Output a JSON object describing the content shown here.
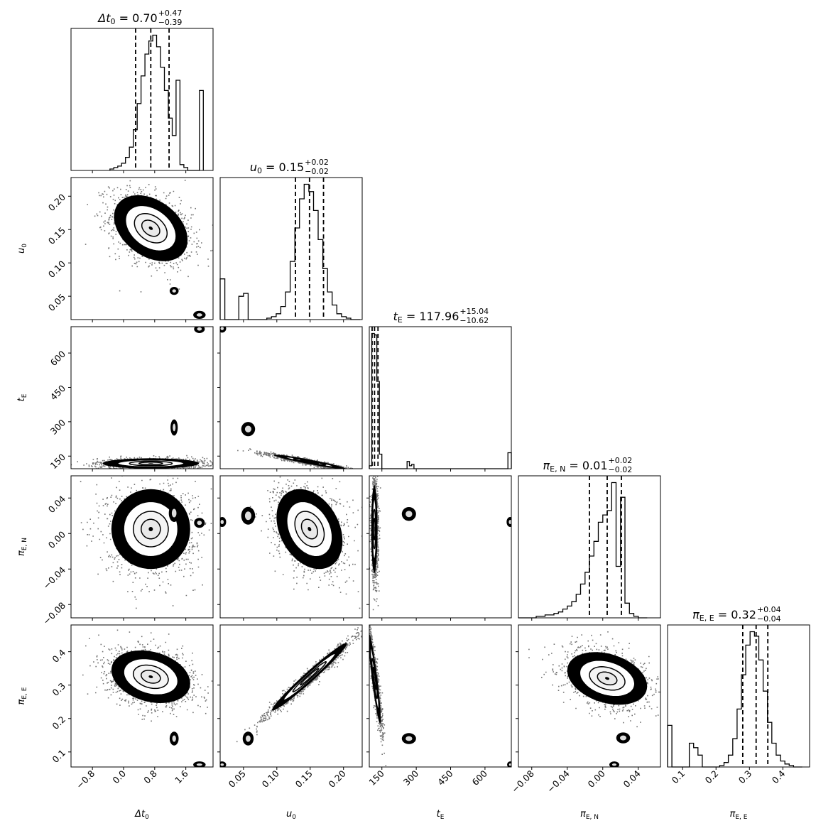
{
  "chart_data": {
    "type": "corner",
    "parameters": [
      {
        "key": "dt0",
        "label": "Δt",
        "label_sub": "0",
        "title_value": "0.70",
        "err_plus": "+0.47",
        "err_minus": "−0.39",
        "range": [
          -1.35,
          2.3
        ],
        "ticks": [
          -0.8,
          0.0,
          0.8,
          1.6
        ],
        "tick_labels": [
          "−0.8",
          "0.0",
          "0.8",
          "1.6"
        ],
        "quantiles": [
          0.31,
          0.7,
          1.17
        ]
      },
      {
        "key": "u0",
        "label": "u",
        "label_sub": "0",
        "title_value": "0.15",
        "err_plus": "+0.02",
        "err_minus": "−0.02",
        "range": [
          0.015,
          0.228
        ],
        "ticks": [
          0.05,
          0.1,
          0.15,
          0.2
        ],
        "tick_labels": [
          "0.05",
          "0.10",
          "0.15",
          "0.20"
        ],
        "quantiles": [
          0.128,
          0.149,
          0.17
        ]
      },
      {
        "key": "tE",
        "label": "t",
        "label_sub": "E",
        "title_value": "117.96",
        "err_plus": "+15.04",
        "err_minus": "−10.62",
        "range": [
          95,
          715
        ],
        "ticks": [
          150,
          300,
          450,
          600
        ],
        "tick_labels": [
          "150",
          "300",
          "450",
          "600"
        ],
        "quantiles": [
          107.3,
          117.96,
          133.0
        ]
      },
      {
        "key": "piEN",
        "label": "π",
        "label_sub": "E, N",
        "title_value": "0.01",
        "err_plus": "+0.02",
        "err_minus": "−0.02",
        "range": [
          -0.095,
          0.065
        ],
        "ticks": [
          -0.08,
          -0.04,
          0.0,
          0.04
        ],
        "tick_labels": [
          "−0.08",
          "−0.04",
          "0.00",
          "0.04"
        ],
        "quantiles": [
          -0.015,
          0.005,
          0.021
        ]
      },
      {
        "key": "piEE",
        "label": "π",
        "label_sub": "E, E",
        "title_value": "0.32",
        "err_plus": "+0.04",
        "err_minus": "−0.04",
        "range": [
          0.055,
          0.48
        ],
        "ticks": [
          0.1,
          0.2,
          0.3,
          0.4
        ],
        "tick_labels": [
          "0.1",
          "0.2",
          "0.3",
          "0.4"
        ],
        "quantiles": [
          0.28,
          0.32,
          0.355
        ]
      }
    ],
    "histograms": [
      {
        "param": "dt0",
        "bins": [
          -0.35,
          -0.25,
          -0.15,
          -0.05,
          0.05,
          0.15,
          0.25,
          0.35,
          0.45,
          0.55,
          0.65,
          0.75,
          0.85,
          0.95,
          1.05,
          1.15,
          1.25,
          1.35,
          1.45,
          1.55,
          1.65,
          1.75,
          1.85,
          1.95,
          2.05
        ],
        "values": [
          0.01,
          0.02,
          0.03,
          0.05,
          0.09,
          0.16,
          0.28,
          0.46,
          0.65,
          0.8,
          0.89,
          0.93,
          0.85,
          0.71,
          0.55,
          0.36,
          0.24,
          0.62,
          0.04,
          0.02,
          0.0,
          0.0,
          0.0,
          0.55,
          0.0
        ]
      },
      {
        "param": "u0",
        "bins": [
          0.015,
          0.022,
          0.029,
          0.036,
          0.043,
          0.05,
          0.057,
          0.064,
          0.071,
          0.078,
          0.085,
          0.092,
          0.099,
          0.106,
          0.113,
          0.12,
          0.127,
          0.134,
          0.141,
          0.148,
          0.155,
          0.162,
          0.169,
          0.176,
          0.183,
          0.19,
          0.197,
          0.204,
          0.211,
          0.218,
          0.225
        ],
        "values": [
          0.28,
          0.0,
          0.0,
          0.0,
          0.16,
          0.18,
          0.0,
          0.0,
          0.0,
          0.0,
          0.01,
          0.02,
          0.04,
          0.09,
          0.19,
          0.4,
          0.63,
          0.83,
          0.93,
          0.88,
          0.75,
          0.55,
          0.35,
          0.19,
          0.1,
          0.04,
          0.02,
          0.01,
          0.0,
          0.0
        ]
      },
      {
        "param": "tE",
        "bins": [
          95,
          106,
          117,
          128,
          139,
          150,
          200,
          250,
          260,
          270,
          280,
          290,
          300,
          600,
          700,
          715
        ],
        "values": [
          0.02,
          0.93,
          0.92,
          0.6,
          0.1,
          0.0,
          0.0,
          0.0,
          0.05,
          0.02,
          0.03,
          0.0,
          0.0,
          0.0,
          0.11
        ]
      },
      {
        "param": "piEN",
        "bins": [
          -0.095,
          -0.09,
          -0.085,
          -0.08,
          -0.075,
          -0.07,
          -0.065,
          -0.06,
          -0.055,
          -0.05,
          -0.045,
          -0.04,
          -0.035,
          -0.03,
          -0.025,
          -0.02,
          -0.015,
          -0.01,
          -0.005,
          0.0,
          0.005,
          0.01,
          0.015,
          0.02,
          0.025,
          0.03,
          0.035,
          0.04,
          0.045,
          0.05
        ],
        "values": [
          0.0,
          0.0,
          0.0,
          0.0,
          0.01,
          0.01,
          0.02,
          0.02,
          0.03,
          0.04,
          0.06,
          0.08,
          0.11,
          0.16,
          0.23,
          0.31,
          0.42,
          0.52,
          0.65,
          0.7,
          0.73,
          0.92,
          0.35,
          0.82,
          0.1,
          0.03,
          0.01,
          0.0,
          0.0
        ]
      },
      {
        "param": "piEE",
        "bins": [
          0.055,
          0.068,
          0.081,
          0.094,
          0.107,
          0.12,
          0.133,
          0.146,
          0.159,
          0.172,
          0.185,
          0.198,
          0.211,
          0.224,
          0.237,
          0.25,
          0.263,
          0.276,
          0.289,
          0.302,
          0.315,
          0.328,
          0.341,
          0.354,
          0.367,
          0.38,
          0.393,
          0.406,
          0.419,
          0.432,
          0.445,
          0.458
        ],
        "values": [
          0.28,
          0.0,
          0.0,
          0.0,
          0.0,
          0.16,
          0.13,
          0.08,
          0.0,
          0.0,
          0.0,
          0.0,
          0.01,
          0.03,
          0.08,
          0.19,
          0.39,
          0.62,
          0.82,
          0.91,
          0.88,
          0.72,
          0.51,
          0.3,
          0.16,
          0.08,
          0.04,
          0.02,
          0.01,
          0.0,
          0.0
        ]
      }
    ],
    "pairs": [
      {
        "x": "dt0",
        "y": "u0",
        "center": [
          0.7,
          0.152
        ],
        "sigma": [
          0.42,
          0.022
        ],
        "rho": -0.35,
        "islands": [
          {
            "at": [
              1.3,
              0.058
            ],
            "s": [
              0.04,
              0.002
            ]
          },
          {
            "at": [
              1.95,
              0.022
            ],
            "s": [
              0.06,
              0.002
            ]
          }
        ]
      },
      {
        "x": "dt0",
        "y": "tE",
        "center": [
          0.7,
          118
        ],
        "sigma": [
          0.55,
          10
        ],
        "rho": 0.0,
        "islands": [
          {
            "at": [
              1.3,
              275
            ],
            "s": [
              0.03,
              14
            ]
          },
          {
            "at": [
              1.95,
              705
            ],
            "s": [
              0.05,
              6
            ]
          }
        ]
      },
      {
        "x": "u0",
        "y": "tE",
        "center": [
          0.149,
          125
        ],
        "sigma": [
          0.024,
          14
        ],
        "rho": -0.95,
        "islands": [
          {
            "at": [
              0.057,
              268
            ],
            "s": [
              0.004,
              12
            ]
          },
          {
            "at": [
              0.018,
              707
            ],
            "s": [
              0.002,
              6
            ]
          }
        ]
      },
      {
        "x": "dt0",
        "y": "piEN",
        "center": [
          0.7,
          0.005
        ],
        "sigma": [
          0.45,
          0.02
        ],
        "rho": 0.0,
        "islands": [
          {
            "at": [
              1.3,
              0.023
            ],
            "s": [
              0.05,
              0.004
            ]
          },
          {
            "at": [
              1.95,
              0.012
            ],
            "s": [
              0.05,
              0.002
            ]
          }
        ]
      },
      {
        "x": "u0",
        "y": "piEN",
        "center": [
          0.149,
          0.005
        ],
        "sigma": [
          0.022,
          0.02
        ],
        "rho": -0.3,
        "islands": [
          {
            "at": [
              0.057,
              0.02
            ],
            "s": [
              0.004,
              0.004
            ]
          },
          {
            "at": [
              0.018,
              0.013
            ],
            "s": [
              0.002,
              0.002
            ]
          }
        ]
      },
      {
        "x": "tE",
        "y": "piEN",
        "center": [
          117,
          0.005
        ],
        "sigma": [
          6,
          0.022
        ],
        "rho": 0.0,
        "islands": [
          {
            "at": [
              268,
              0.022
            ],
            "s": [
              12,
              0.003
            ]
          },
          {
            "at": [
              710,
              0.013
            ],
            "s": [
              5,
              0.002
            ]
          }
        ]
      },
      {
        "x": "dt0",
        "y": "piEE",
        "center": [
          0.7,
          0.325
        ],
        "sigma": [
          0.45,
          0.035
        ],
        "rho": -0.25,
        "islands": [
          {
            "at": [
              1.3,
              0.14
            ],
            "s": [
              0.04,
              0.008
            ]
          },
          {
            "at": [
              1.95,
              0.062
            ],
            "s": [
              0.06,
              0.003
            ]
          }
        ]
      },
      {
        "x": "u0",
        "y": "piEE",
        "center": [
          0.149,
          0.325
        ],
        "sigma": [
          0.025,
          0.045
        ],
        "rho": 0.98,
        "islands": [
          {
            "at": [
              0.057,
              0.14
            ],
            "s": [
              0.003,
              0.008
            ]
          },
          {
            "at": [
              0.018,
              0.062
            ],
            "s": [
              0.002,
              0.003
            ]
          }
        ]
      },
      {
        "x": "tE",
        "y": "piEE",
        "center": [
          118,
          0.32
        ],
        "sigma": [
          12,
          0.06
        ],
        "rho": -0.9,
        "islands": [
          {
            "at": [
              268,
              0.14
            ],
            "s": [
              12,
              0.006
            ]
          },
          {
            "at": [
              710,
              0.062
            ],
            "s": [
              4,
              0.003
            ]
          }
        ]
      },
      {
        "x": "piEN",
        "y": "piEE",
        "center": [
          0.005,
          0.32
        ],
        "sigma": [
          0.02,
          0.035
        ],
        "rho": -0.3,
        "islands": [
          {
            "at": [
              0.023,
              0.142
            ],
            "s": [
              0.003,
              0.006
            ]
          },
          {
            "at": [
              0.013,
              0.062
            ],
            "s": [
              0.002,
              0.003
            ]
          }
        ]
      }
    ]
  }
}
